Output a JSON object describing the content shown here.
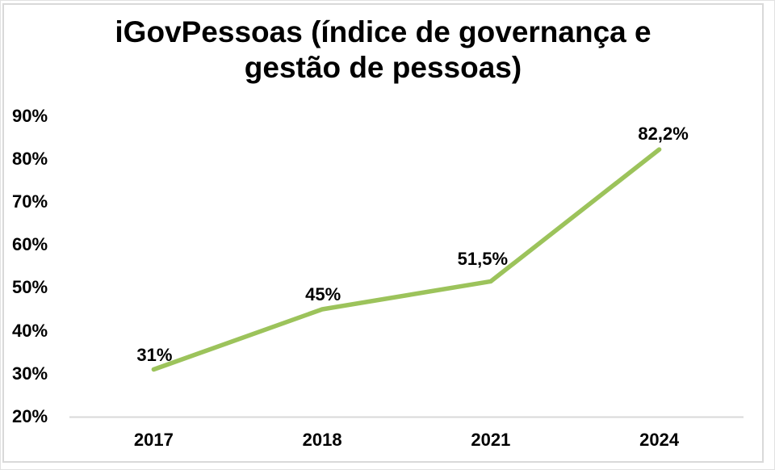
{
  "page": {
    "title_lines": [
      "iGovPessoas (índice de governança e",
      "gestão de pessoas)"
    ]
  },
  "chart_data": {
    "type": "line",
    "title": "iGovPessoas (índice de governança e gestão de pessoas)",
    "categories": [
      "2017",
      "2018",
      "2021",
      "2024"
    ],
    "series": [
      {
        "values": [
          31,
          45,
          51.5,
          82.2
        ],
        "data_labels": [
          "31%",
          "45%",
          "51,5%",
          "82,2%"
        ],
        "color": "#9cc35b"
      }
    ],
    "y_axis": {
      "min": 20,
      "max": 90,
      "step": 10,
      "tick_labels": [
        "20%",
        "30%",
        "40%",
        "50%",
        "60%",
        "70%",
        "80%",
        "90%"
      ]
    },
    "x_axis": {
      "axis_line_color": "#d9d9d9"
    },
    "grid": false,
    "legend": false,
    "line_width": 5.5,
    "text_color": "#000000",
    "frame_color": "#d9d9d9"
  }
}
